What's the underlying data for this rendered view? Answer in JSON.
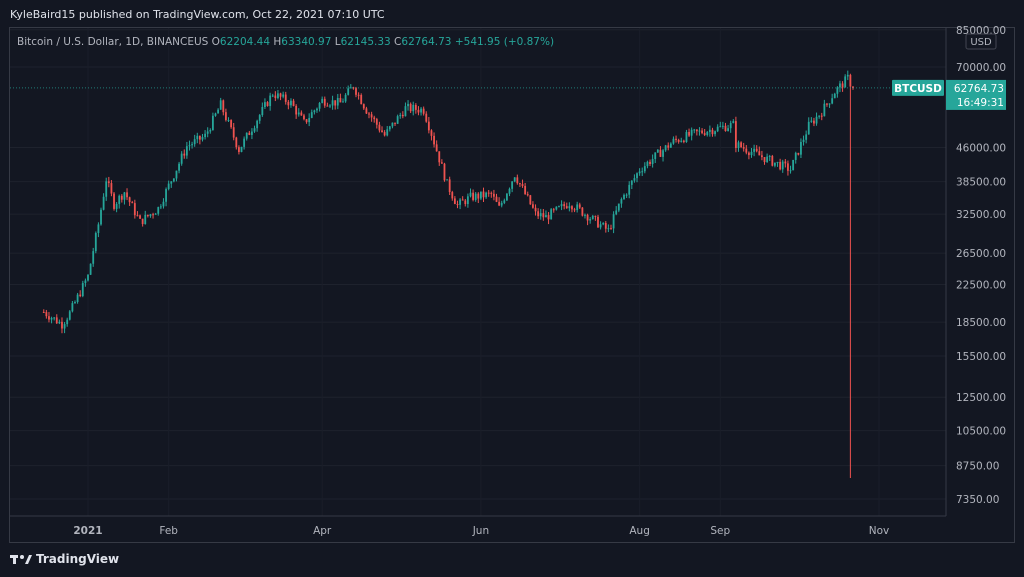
{
  "header": {
    "publish_text": "KyleBaird15 published on TradingView.com, Oct 22, 2021 07:10 UTC"
  },
  "legend": {
    "symbol": "Bitcoin / U.S. Dollar, 1D, BINANCEUS",
    "o_label": "O",
    "o_value": "62204.44",
    "h_label": "H",
    "h_value": "63340.97",
    "l_label": "L",
    "l_value": "62145.33",
    "c_label": "C",
    "c_value": "62764.73",
    "change": "+541.95 (+0.87%)"
  },
  "footer": {
    "brand": "TradingView"
  },
  "colors": {
    "up": "#26a69a",
    "down": "#ef5350",
    "background": "#131722",
    "grid": "#1e222d",
    "accent": "#26a69a"
  },
  "chart_data": {
    "type": "candlestick",
    "symbol": "BTCUSD",
    "interval": "1D",
    "currency": "USD",
    "y_scale": "log",
    "ylim": [
      6500,
      85000
    ],
    "y_ticks": [
      "85000.00",
      "70000.00",
      "46000.00",
      "38500.00",
      "32500.00",
      "26500.00",
      "22500.00",
      "18500.00",
      "15500.00",
      "12500.00",
      "10500.00",
      "8750.00",
      "7350.00"
    ],
    "x_ticks": [
      "2021",
      "Feb",
      "Apr",
      "Jun",
      "Aug",
      "Sep",
      "Nov"
    ],
    "last_price_label": {
      "symbol": "BTCUSD",
      "price": "62764.73",
      "countdown": "16:49:31"
    },
    "wick_low_oct21": 8200,
    "anchors": [
      {
        "date": "2020-12-15",
        "close": 19500
      },
      {
        "date": "2020-12-22",
        "close": 18300
      },
      {
        "date": "2020-12-25",
        "close": 19400
      },
      {
        "date": "2021-01-01",
        "close": 23500
      },
      {
        "date": "2021-01-05",
        "close": 30800
      },
      {
        "date": "2021-01-08",
        "close": 39000
      },
      {
        "date": "2021-01-11",
        "close": 34200
      },
      {
        "date": "2021-01-15",
        "close": 36500
      },
      {
        "date": "2021-01-21",
        "close": 31200
      },
      {
        "date": "2021-01-28",
        "close": 33500
      },
      {
        "date": "2021-02-08",
        "close": 46300
      },
      {
        "date": "2021-02-15",
        "close": 48800
      },
      {
        "date": "2021-02-21",
        "close": 57500
      },
      {
        "date": "2021-02-28",
        "close": 45500
      },
      {
        "date": "2021-03-13",
        "close": 61000
      },
      {
        "date": "2021-03-20",
        "close": 58000
      },
      {
        "date": "2021-03-25",
        "close": 52300
      },
      {
        "date": "2021-04-01",
        "close": 58800
      },
      {
        "date": "2021-04-08",
        "close": 58000
      },
      {
        "date": "2021-04-13",
        "close": 63500
      },
      {
        "date": "2021-04-18",
        "close": 56000
      },
      {
        "date": "2021-04-25",
        "close": 49000
      },
      {
        "date": "2021-05-03",
        "close": 56500
      },
      {
        "date": "2021-05-10",
        "close": 56000
      },
      {
        "date": "2021-05-13",
        "close": 49500
      },
      {
        "date": "2021-05-19",
        "close": 38000
      },
      {
        "date": "2021-05-23",
        "close": 34000
      },
      {
        "date": "2021-05-28",
        "close": 35500
      },
      {
        "date": "2021-06-05",
        "close": 36000
      },
      {
        "date": "2021-06-08",
        "close": 33500
      },
      {
        "date": "2021-06-14",
        "close": 40000
      },
      {
        "date": "2021-06-22",
        "close": 32500
      },
      {
        "date": "2021-06-26",
        "close": 32000
      },
      {
        "date": "2021-07-05",
        "close": 34500
      },
      {
        "date": "2021-07-20",
        "close": 29800
      },
      {
        "date": "2021-07-25",
        "close": 35000
      },
      {
        "date": "2021-08-01",
        "close": 41000
      },
      {
        "date": "2021-08-14",
        "close": 47500
      },
      {
        "date": "2021-08-22",
        "close": 49500
      },
      {
        "date": "2021-09-06",
        "close": 51800
      },
      {
        "date": "2021-09-07",
        "close": 46800
      },
      {
        "date": "2021-09-20",
        "close": 43000
      },
      {
        "date": "2021-09-28",
        "close": 41000
      },
      {
        "date": "2021-10-05",
        "close": 51500
      },
      {
        "date": "2021-10-10",
        "close": 55500
      },
      {
        "date": "2021-10-15",
        "close": 61500
      },
      {
        "date": "2021-10-20",
        "close": 66000
      },
      {
        "date": "2021-10-22",
        "close": 62764.73
      }
    ]
  }
}
